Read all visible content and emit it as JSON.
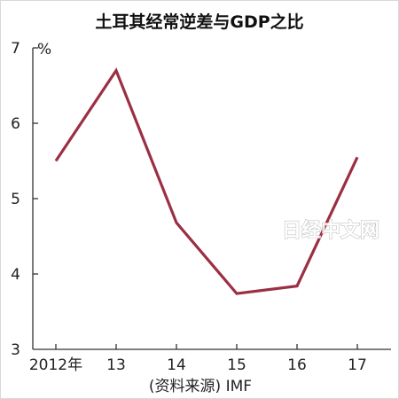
{
  "chart_data": {
    "type": "line",
    "title": "土耳其经常逆差与GDP之比",
    "ylabel": "%",
    "categories": [
      "2012年",
      "13",
      "14",
      "15",
      "16",
      "17"
    ],
    "series": [
      {
        "values": [
          5.5,
          6.7,
          4.68,
          3.74,
          3.84,
          5.55
        ]
      }
    ],
    "ylim": [
      3,
      7
    ],
    "yticks": [
      "3",
      "4",
      "5",
      "6",
      "7"
    ],
    "grid": false,
    "line_color": "#9b2f43",
    "source": "(资料来源) IMF"
  },
  "watermark": "日经中文网"
}
